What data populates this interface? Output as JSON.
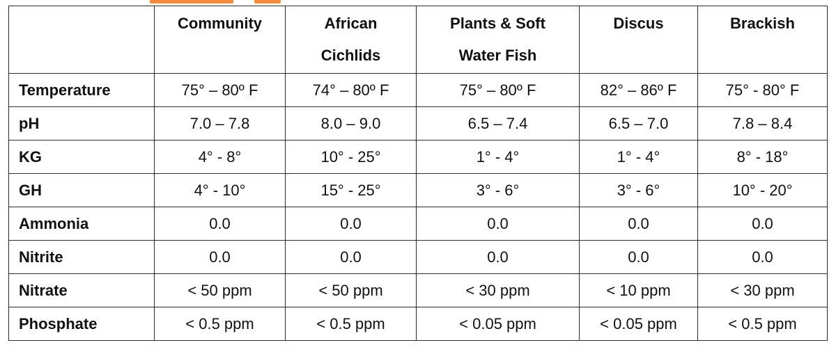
{
  "table": {
    "corner": "",
    "columns": [
      [
        "Community"
      ],
      [
        "African",
        "Cichlids"
      ],
      [
        "Plants & Soft",
        "Water Fish"
      ],
      [
        "Discus"
      ],
      [
        "Brackish"
      ]
    ],
    "rows": [
      {
        "label": "Temperature",
        "values": [
          "75° – 80º F",
          "74° – 80º F",
          "75° – 80º F",
          "82° – 86º F",
          "75° - 80° F"
        ]
      },
      {
        "label": "pH",
        "values": [
          "7.0 – 7.8",
          "8.0 – 9.0",
          "6.5 – 7.4",
          "6.5 – 7.0",
          "7.8 – 8.4"
        ]
      },
      {
        "label": "KG",
        "values": [
          "4° - 8°",
          "10° - 25°",
          "1° - 4°",
          "1° - 4°",
          "8° - 18°"
        ]
      },
      {
        "label": "GH",
        "values": [
          "4° - 10°",
          "15° - 25°",
          "3° - 6°",
          "3° - 6°",
          "10° - 20°"
        ]
      },
      {
        "label": "Ammonia",
        "values": [
          "0.0",
          "0.0",
          "0.0",
          "0.0",
          "0.0"
        ]
      },
      {
        "label": "Nitrite",
        "values": [
          "0.0",
          "0.0",
          "0.0",
          "0.0",
          "0.0"
        ]
      },
      {
        "label": "Nitrate",
        "values": [
          "< 50 ppm",
          "< 50 ppm",
          "< 30 ppm",
          "< 10 ppm",
          "< 30 ppm"
        ]
      },
      {
        "label": "Phosphate",
        "values": [
          "< 0.5 ppm",
          "< 0.5 ppm",
          "< 0.05 ppm",
          "< 0.05 ppm",
          "< 0.5 ppm"
        ]
      }
    ]
  },
  "colors": {
    "accent": "#f08a3c",
    "border": "#2b2b2b",
    "text": "#111111"
  }
}
